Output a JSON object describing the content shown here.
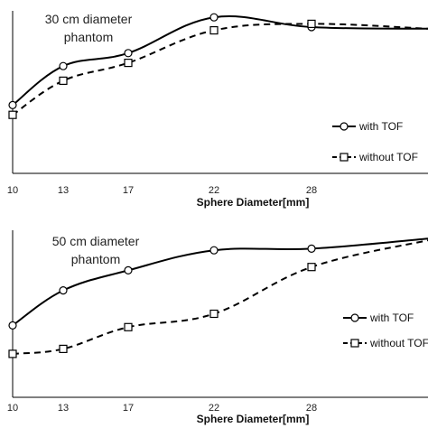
{
  "chart_data": [
    {
      "type": "line",
      "title": [
        "30 cm diameter",
        "phantom"
      ],
      "xlabel": "Sphere Diameter[mm]",
      "x": [
        10,
        13,
        17,
        22,
        28
      ],
      "x_ticks": [
        "10",
        "13",
        "17",
        "22",
        "28"
      ],
      "xlim": [
        10,
        37
      ],
      "ylim": [
        0,
        1
      ],
      "series": [
        {
          "name": "with TOF",
          "values": [
            0.42,
            0.66,
            0.74,
            0.96,
            0.9
          ],
          "end_value": 0.89,
          "marker": "circle",
          "dash": "solid",
          "color": "#000000"
        },
        {
          "name": "without TOF",
          "values": [
            0.36,
            0.57,
            0.68,
            0.88,
            0.92
          ],
          "end_value": 0.89,
          "marker": "square",
          "dash": "dashed",
          "color": "#000000"
        }
      ],
      "legend_position": "right"
    },
    {
      "type": "line",
      "title": [
        "50 cm diameter",
        "phantom"
      ],
      "xlabel": "Sphere Diameter[mm]",
      "x": [
        10,
        13,
        17,
        22,
        28
      ],
      "x_ticks": [
        "10",
        "13",
        "17",
        "22",
        "28"
      ],
      "xlim": [
        10,
        37
      ],
      "ylim": [
        0,
        1
      ],
      "series": [
        {
          "name": "with TOF",
          "values": [
            0.43,
            0.64,
            0.76,
            0.88,
            0.89
          ],
          "end_value": 0.95,
          "marker": "circle",
          "dash": "solid",
          "color": "#000000"
        },
        {
          "name": "without TOF",
          "values": [
            0.26,
            0.29,
            0.42,
            0.5,
            0.78
          ],
          "end_value": 0.94,
          "marker": "square",
          "dash": "dashed",
          "color": "#000000"
        }
      ],
      "legend_position": "right"
    }
  ]
}
